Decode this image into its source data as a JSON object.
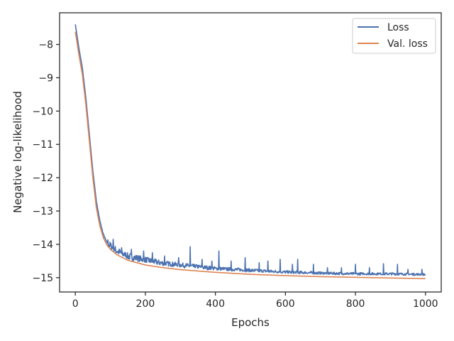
{
  "chart_data": {
    "type": "line",
    "xlabel": "Epochs",
    "ylabel": "Negative log-likelihood",
    "xlim": [
      -45,
      1045
    ],
    "ylim": [
      -15.43,
      -7.05
    ],
    "xticks": [
      0,
      200,
      400,
      600,
      800,
      1000
    ],
    "yticks": [
      -8,
      -9,
      -10,
      -11,
      -12,
      -13,
      -14,
      -15
    ],
    "xtick_labels": [
      "0",
      "200",
      "400",
      "600",
      "800",
      "1000"
    ],
    "ytick_labels": [
      "−8",
      "−9",
      "−10",
      "−11",
      "−12",
      "−13",
      "−14",
      "−15"
    ],
    "grid": false,
    "legend_position": "top-right",
    "series": [
      {
        "name": "Loss",
        "color": "#4c72b0",
        "noisy": true,
        "x": [
          0,
          10,
          20,
          30,
          40,
          50,
          60,
          70,
          80,
          90,
          100,
          120,
          150,
          200,
          250,
          300,
          350,
          400,
          500,
          600,
          700,
          800,
          900,
          1000
        ],
        "y": [
          -7.4,
          -8.1,
          -8.7,
          -9.6,
          -10.7,
          -11.8,
          -12.7,
          -13.3,
          -13.7,
          -13.95,
          -14.1,
          -14.25,
          -14.4,
          -14.5,
          -14.6,
          -14.65,
          -14.7,
          -14.75,
          -14.8,
          -14.85,
          -14.88,
          -14.9,
          -14.9,
          -14.92
        ],
        "spikes": [
          [
            108,
            -13.85
          ],
          [
            132,
            -14.1
          ],
          [
            160,
            -14.15
          ],
          [
            195,
            -14.2
          ],
          [
            220,
            -14.25
          ],
          [
            255,
            -14.35
          ],
          [
            295,
            -14.4
          ],
          [
            328,
            -14.07
          ],
          [
            362,
            -14.45
          ],
          [
            390,
            -14.5
          ],
          [
            410,
            -14.2
          ],
          [
            445,
            -14.5
          ],
          [
            485,
            -14.4
          ],
          [
            525,
            -14.55
          ],
          [
            550,
            -14.5
          ],
          [
            585,
            -14.45
          ],
          [
            620,
            -14.6
          ],
          [
            635,
            -14.45
          ],
          [
            680,
            -14.6
          ],
          [
            720,
            -14.7
          ],
          [
            760,
            -14.7
          ],
          [
            800,
            -14.6
          ],
          [
            840,
            -14.7
          ],
          [
            880,
            -14.58
          ],
          [
            920,
            -14.6
          ],
          [
            950,
            -14.75
          ],
          [
            990,
            -14.75
          ]
        ]
      },
      {
        "name": "Val. loss",
        "color": "#dd8452",
        "noisy": false,
        "x": [
          0,
          10,
          20,
          30,
          40,
          50,
          60,
          70,
          80,
          90,
          100,
          120,
          150,
          200,
          250,
          300,
          350,
          400,
          500,
          600,
          700,
          800,
          900,
          1000
        ],
        "y": [
          -7.62,
          -8.3,
          -8.9,
          -9.8,
          -10.9,
          -12.0,
          -12.9,
          -13.45,
          -13.8,
          -14.02,
          -14.15,
          -14.32,
          -14.48,
          -14.62,
          -14.7,
          -14.76,
          -14.8,
          -14.84,
          -14.9,
          -14.94,
          -14.97,
          -14.99,
          -15.01,
          -15.03
        ]
      }
    ]
  }
}
